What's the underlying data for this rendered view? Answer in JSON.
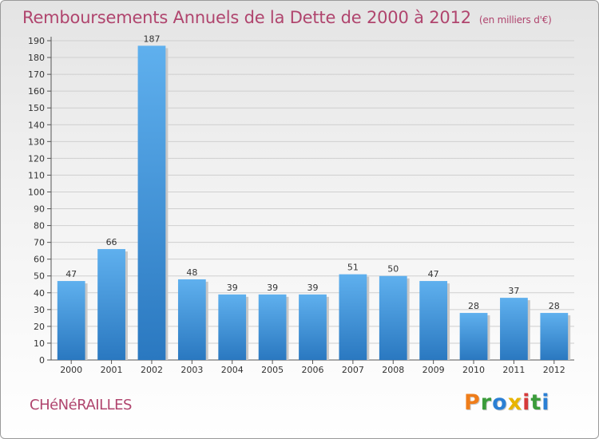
{
  "header": {
    "title": "Remboursements Annuels de la Dette de 2000 à 2012",
    "subtitle": "(en milliers d'€)"
  },
  "footer": {
    "commune": "CHéNéRAILLES",
    "logo": {
      "text": "Proxiti",
      "letters": [
        {
          "char": "P",
          "color": "#ef7d1a"
        },
        {
          "char": "r",
          "color": "#3b9c3b"
        },
        {
          "char": "o",
          "color": "#2a7fd4"
        },
        {
          "char": "x",
          "color": "#e8b400"
        },
        {
          "char": "i",
          "color": "#d63a3a"
        },
        {
          "char": "t",
          "color": "#3b9c3b"
        },
        {
          "char": "i",
          "color": "#2a7fd4"
        }
      ]
    }
  },
  "chart_data": {
    "type": "bar",
    "title": "Remboursements Annuels de la Dette de 2000 à 2012",
    "subtitle": "(en milliers d'€)",
    "categories": [
      "2000",
      "2001",
      "2002",
      "2003",
      "2004",
      "2005",
      "2006",
      "2007",
      "2008",
      "2009",
      "2010",
      "2011",
      "2012"
    ],
    "values": [
      47,
      66,
      187,
      48,
      39,
      39,
      39,
      51,
      50,
      47,
      28,
      37,
      28
    ],
    "ylim": [
      0,
      190
    ],
    "yticks": [
      0,
      10,
      20,
      30,
      40,
      50,
      60,
      70,
      80,
      90,
      100,
      110,
      120,
      130,
      140,
      150,
      160,
      170,
      180,
      190
    ],
    "grid": true,
    "bar_color": "#3a8fd8",
    "xlabel": "",
    "ylabel": ""
  }
}
